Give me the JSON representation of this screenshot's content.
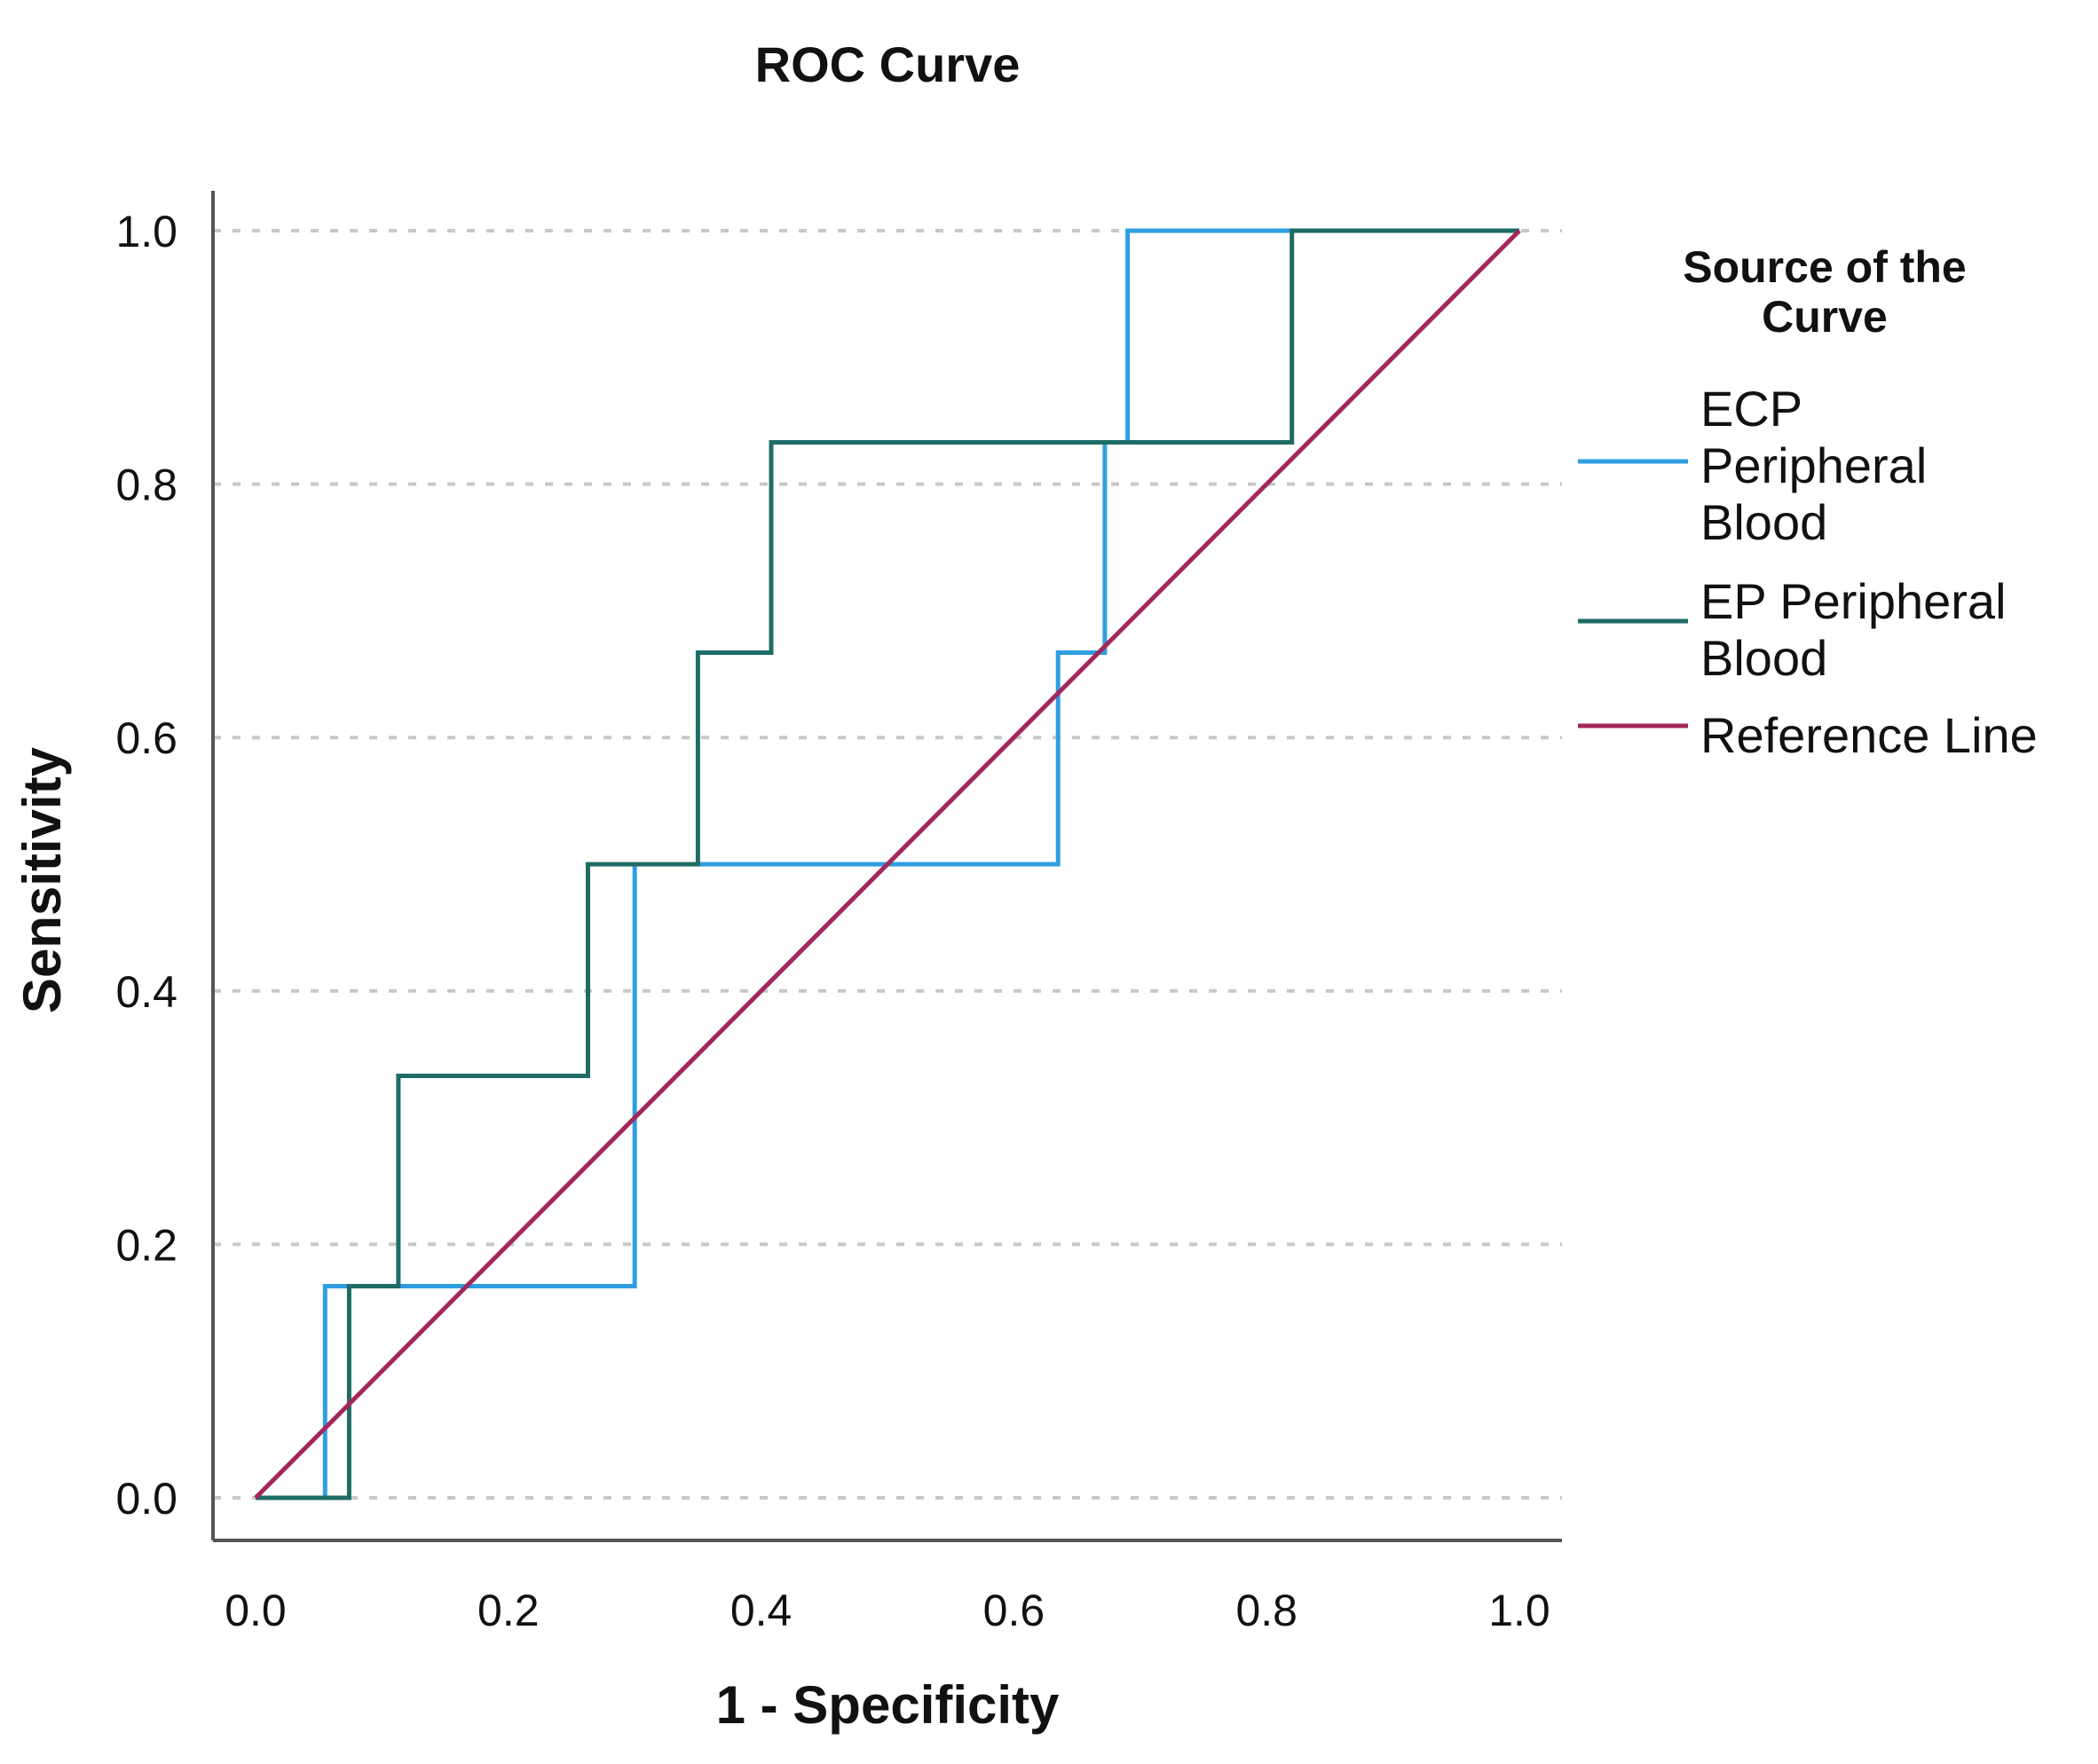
{
  "chart_data": {
    "type": "line",
    "title": "ROC Curve",
    "xlabel": "1 - Specificity",
    "ylabel": "Sensitivity",
    "xlim": [
      0.0,
      1.0
    ],
    "ylim": [
      0.0,
      1.0
    ],
    "x_ticks": [
      "0.0",
      "0.2",
      "0.4",
      "0.6",
      "0.8",
      "1.0"
    ],
    "y_ticks": [
      "0.0",
      "0.2",
      "0.4",
      "0.6",
      "0.8",
      "1.0"
    ],
    "grid": "horizontal dotted",
    "legend": {
      "title_lines": [
        "Source of the",
        "Curve"
      ],
      "placement": "right"
    },
    "series": [
      {
        "name": "ECP Peripheral Blood",
        "label_lines": [
          "ECP",
          "Peripheral",
          "Blood"
        ],
        "color": "#2f9ee0",
        "x": [
          0.0,
          0.055,
          0.055,
          0.3,
          0.3,
          0.635,
          0.635,
          0.672,
          0.672,
          0.69,
          0.69,
          1.0
        ],
        "y": [
          0.0,
          0.0,
          0.167,
          0.167,
          0.5,
          0.5,
          0.667,
          0.667,
          0.833,
          0.833,
          1.0,
          1.0
        ]
      },
      {
        "name": "EP Peripheral Blood",
        "label_lines": [
          "EP Peripheral",
          "Blood"
        ],
        "color": "#1f6b66",
        "x": [
          0.0,
          0.074,
          0.074,
          0.113,
          0.113,
          0.263,
          0.263,
          0.35,
          0.35,
          0.408,
          0.408,
          0.82,
          0.82,
          1.0
        ],
        "y": [
          0.0,
          0.0,
          0.167,
          0.167,
          0.333,
          0.333,
          0.5,
          0.5,
          0.667,
          0.667,
          0.833,
          0.833,
          1.0,
          1.0
        ]
      },
      {
        "name": "Reference Line",
        "label_lines": [
          "Reference Line"
        ],
        "color": "#a3275a",
        "x": [
          0.0,
          1.0
        ],
        "y": [
          0.0,
          1.0
        ]
      }
    ]
  }
}
